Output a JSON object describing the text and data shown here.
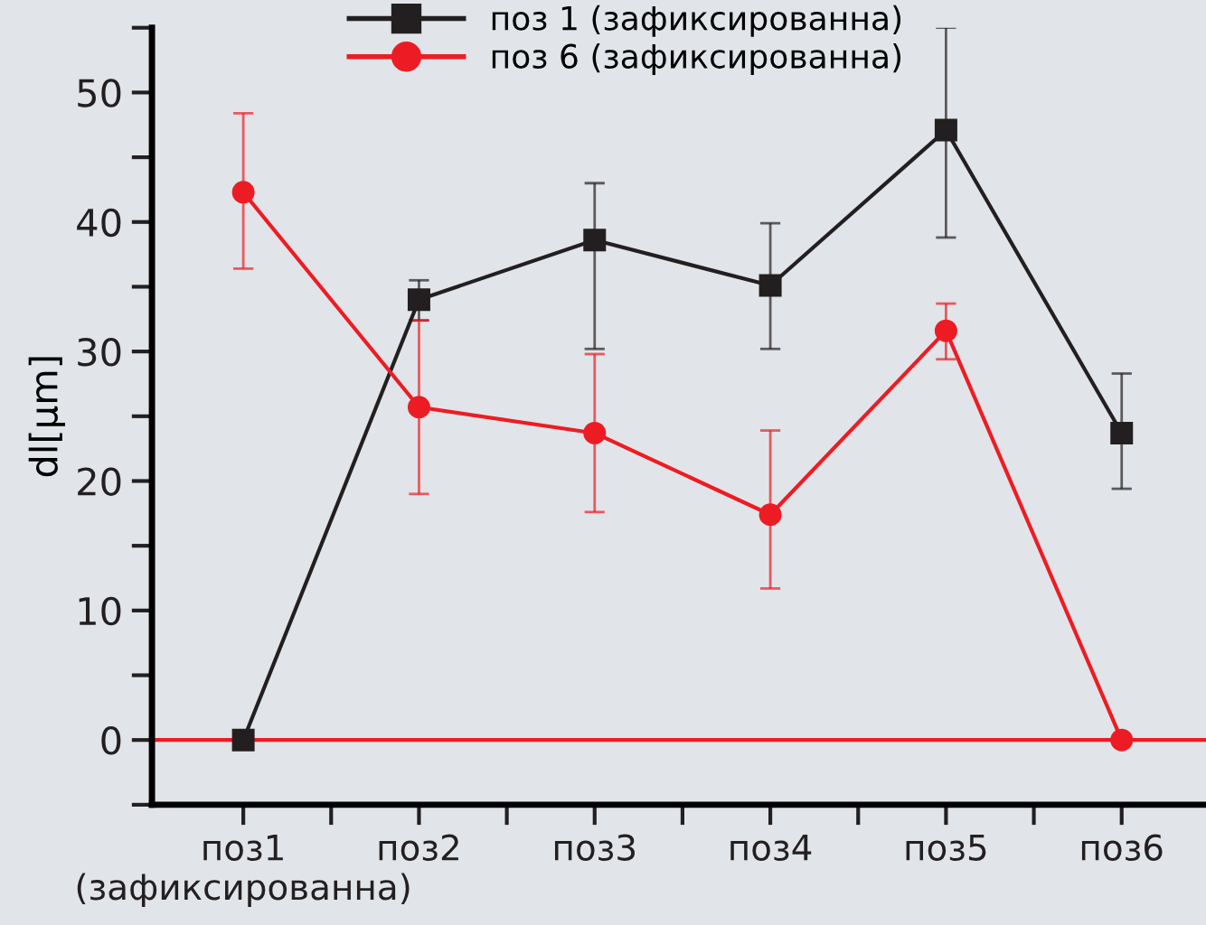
{
  "chart_data": {
    "type": "line",
    "ylabel": "dl[µm]",
    "categories": [
      "поз1\n(зафиксированна)",
      "поз2",
      "поз3",
      "поз4",
      "поз5",
      "поз6"
    ],
    "series": [
      {
        "name": "поз 1 (зафиксированна)",
        "color": "#231f20",
        "marker": "square",
        "values": [
          0,
          34.0,
          38.6,
          35.1,
          47.1,
          23.7
        ],
        "errors": [
          null,
          [
            32.4,
            35.5
          ],
          [
            30.2,
            43.0
          ],
          [
            30.2,
            39.9
          ],
          [
            38.8,
            55.0
          ],
          [
            19.4,
            28.3
          ]
        ]
      },
      {
        "name": "поз 6 (зафиксированна)",
        "color": "#ed1c24",
        "marker": "circle",
        "values": [
          42.3,
          25.7,
          23.7,
          17.4,
          31.6,
          0
        ],
        "errors": [
          [
            36.4,
            48.4
          ],
          [
            19.0,
            32.4
          ],
          [
            17.6,
            29.8
          ],
          [
            11.7,
            23.9
          ],
          [
            29.4,
            33.7
          ],
          null
        ]
      }
    ],
    "ylim": [
      -5,
      55
    ],
    "yticks": [
      {
        "value": -5,
        "label": null
      },
      0,
      {
        "value": 5,
        "label": null
      },
      10,
      {
        "value": 15,
        "label": null
      },
      20,
      {
        "value": 25,
        "label": null
      },
      30,
      {
        "value": 35,
        "label": null
      },
      40,
      {
        "value": 45,
        "label": null
      },
      50,
      {
        "value": 55,
        "label": null
      }
    ],
    "ref_lines": [
      {
        "axis": "y",
        "value": 0,
        "color": "#ed1c24"
      }
    ],
    "legend": "top",
    "grid": false,
    "line_style": "solid"
  }
}
